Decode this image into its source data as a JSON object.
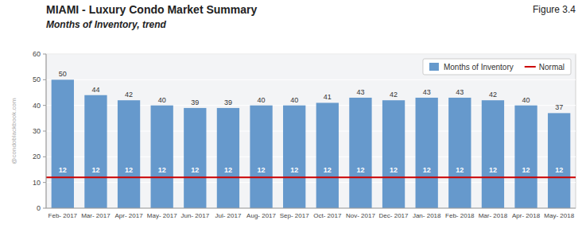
{
  "chart_data": {
    "type": "bar",
    "title": "MIAMI - Luxury Condo Market Summary",
    "subtitle": "Months of Inventory, trend",
    "annotations": [
      "Figure 3.4",
      "@condoblackbook.com"
    ],
    "categories": [
      "Feb- 2017",
      "Mar- 2017",
      "Apr- 2017",
      "May- 2017",
      "Jun- 2017",
      "Jul- 2017",
      "Aug- 2017",
      "Sep- 2017",
      "Oct- 2017",
      "Nov- 2017",
      "Dec- 2017",
      "Jan- 2018",
      "Feb- 2018",
      "Mar- 2018",
      "Apr- 2018",
      "May- 2018"
    ],
    "series": [
      {
        "name": "Months of Inventory",
        "color": "#6699CC",
        "values": [
          50,
          44,
          42,
          40,
          39,
          39,
          40,
          40,
          41,
          43,
          42,
          43,
          43,
          42,
          40,
          37
        ]
      }
    ],
    "reference_lines": [
      {
        "name": "Normal",
        "value": 12,
        "color": "#CC0000"
      }
    ],
    "ylim": [
      0,
      60
    ],
    "yticks": [
      0,
      10,
      20,
      30,
      40,
      50,
      60
    ],
    "grid": true,
    "legend": "upper right",
    "data_labels": true
  }
}
